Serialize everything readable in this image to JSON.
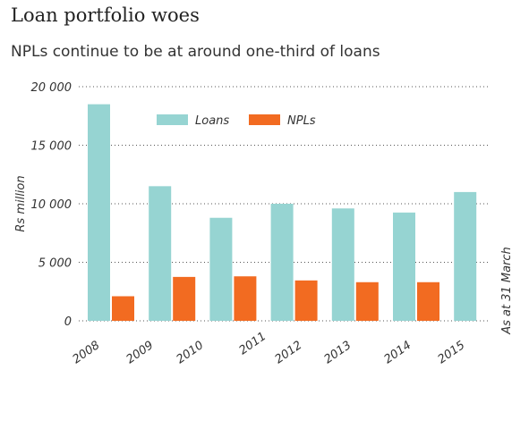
{
  "chart_data": {
    "type": "bar",
    "title": "Loan portfolio woes",
    "subtitle": "NPLs continue to be at around one-third of loans",
    "y_label": "Rs million",
    "annotation": "As at 31 March",
    "categories": [
      "2008",
      "2009",
      "2010",
      "2011",
      "2012",
      "2013",
      "2014",
      "2015"
    ],
    "series": [
      {
        "name": "Loans",
        "color": "#96d4d2",
        "values": [
          18500,
          11500,
          8800,
          null,
          10000,
          9600,
          9250,
          11000
        ]
      },
      {
        "name": "NPLs",
        "color": "#f26b21",
        "values": [
          2100,
          3750,
          3800,
          null,
          3450,
          3300,
          3300,
          null
        ]
      }
    ],
    "ylim": [
      0,
      20000
    ],
    "yticks": [
      0,
      {
        "value": 5000,
        "label": "5 000"
      },
      {
        "value": 10000,
        "label": "10 000"
      },
      {
        "value": 15000,
        "label": "15 000"
      },
      {
        "value": 20000,
        "label": "20 000"
      }
    ],
    "grid": true
  }
}
